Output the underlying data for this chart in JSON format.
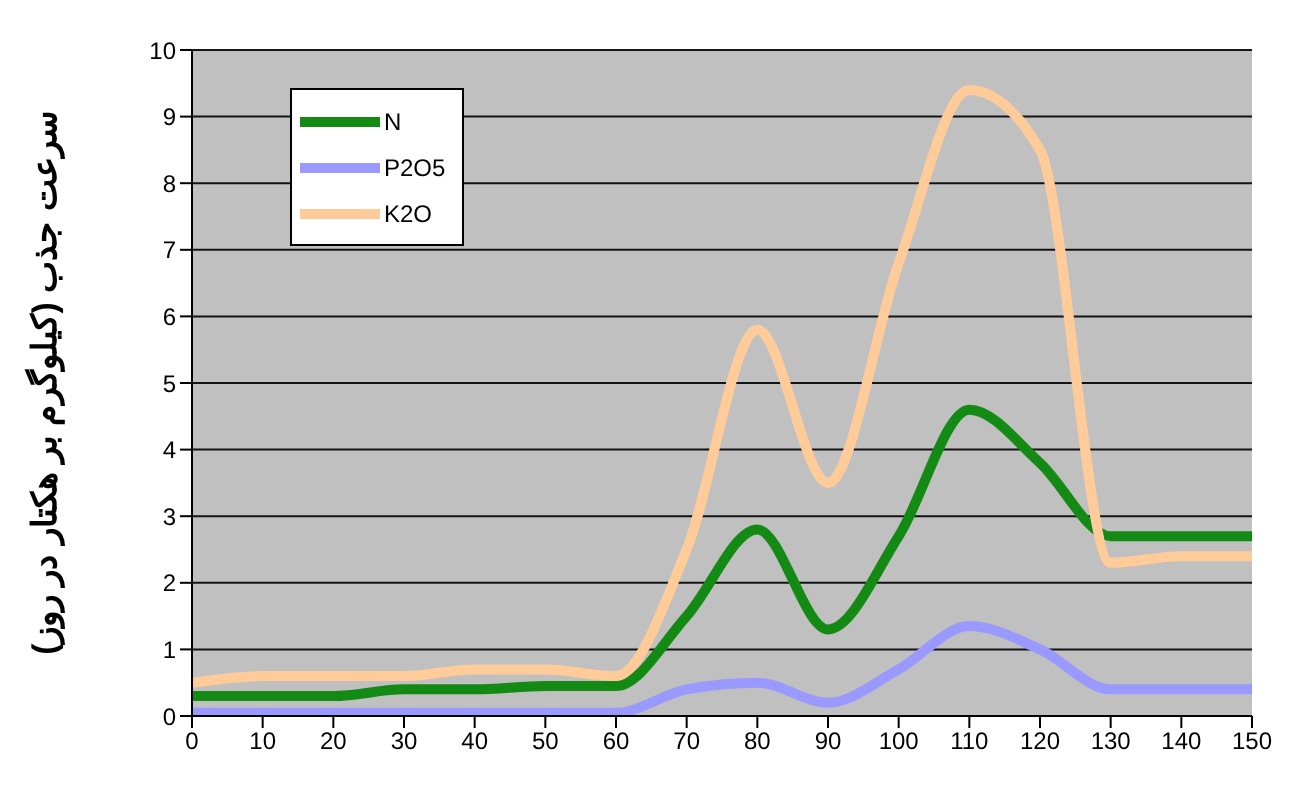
{
  "chart_data": {
    "type": "line",
    "ylabel": "سرعت جذب (کیلوگرم بر هکتار در روز)",
    "x": [
      0,
      10,
      20,
      30,
      40,
      50,
      60,
      70,
      80,
      90,
      100,
      110,
      120,
      130,
      140,
      150
    ],
    "series": [
      {
        "name": "N",
        "color": "#138a13",
        "values": [
          0.3,
          0.3,
          0.3,
          0.4,
          0.4,
          0.45,
          0.45,
          1.5,
          2.8,
          1.3,
          2.7,
          4.6,
          3.8,
          2.7,
          2.7,
          2.7
        ]
      },
      {
        "name": "P2O5",
        "color": "#9999ff",
        "values": [
          0.05,
          0.05,
          0.05,
          0.05,
          0.05,
          0.05,
          0.05,
          0.4,
          0.5,
          0.2,
          0.7,
          1.35,
          1.0,
          0.4,
          0.4,
          0.4
        ]
      },
      {
        "name": "K2O",
        "color": "#ffcc99",
        "values": [
          0.5,
          0.6,
          0.6,
          0.6,
          0.7,
          0.7,
          0.6,
          2.5,
          5.8,
          3.5,
          6.8,
          9.4,
          8.5,
          2.3,
          2.4,
          2.4
        ]
      }
    ],
    "xlim": [
      0,
      150
    ],
    "xticks": [
      0,
      10,
      20,
      30,
      40,
      50,
      60,
      70,
      80,
      90,
      100,
      110,
      120,
      130,
      140,
      150
    ],
    "ylim": [
      0,
      10
    ],
    "yticks": [
      0,
      1,
      2,
      3,
      4,
      5,
      6,
      7,
      8,
      9,
      10
    ],
    "grid": "y",
    "legend": "top left",
    "marker": "none",
    "line_style": "solid"
  }
}
